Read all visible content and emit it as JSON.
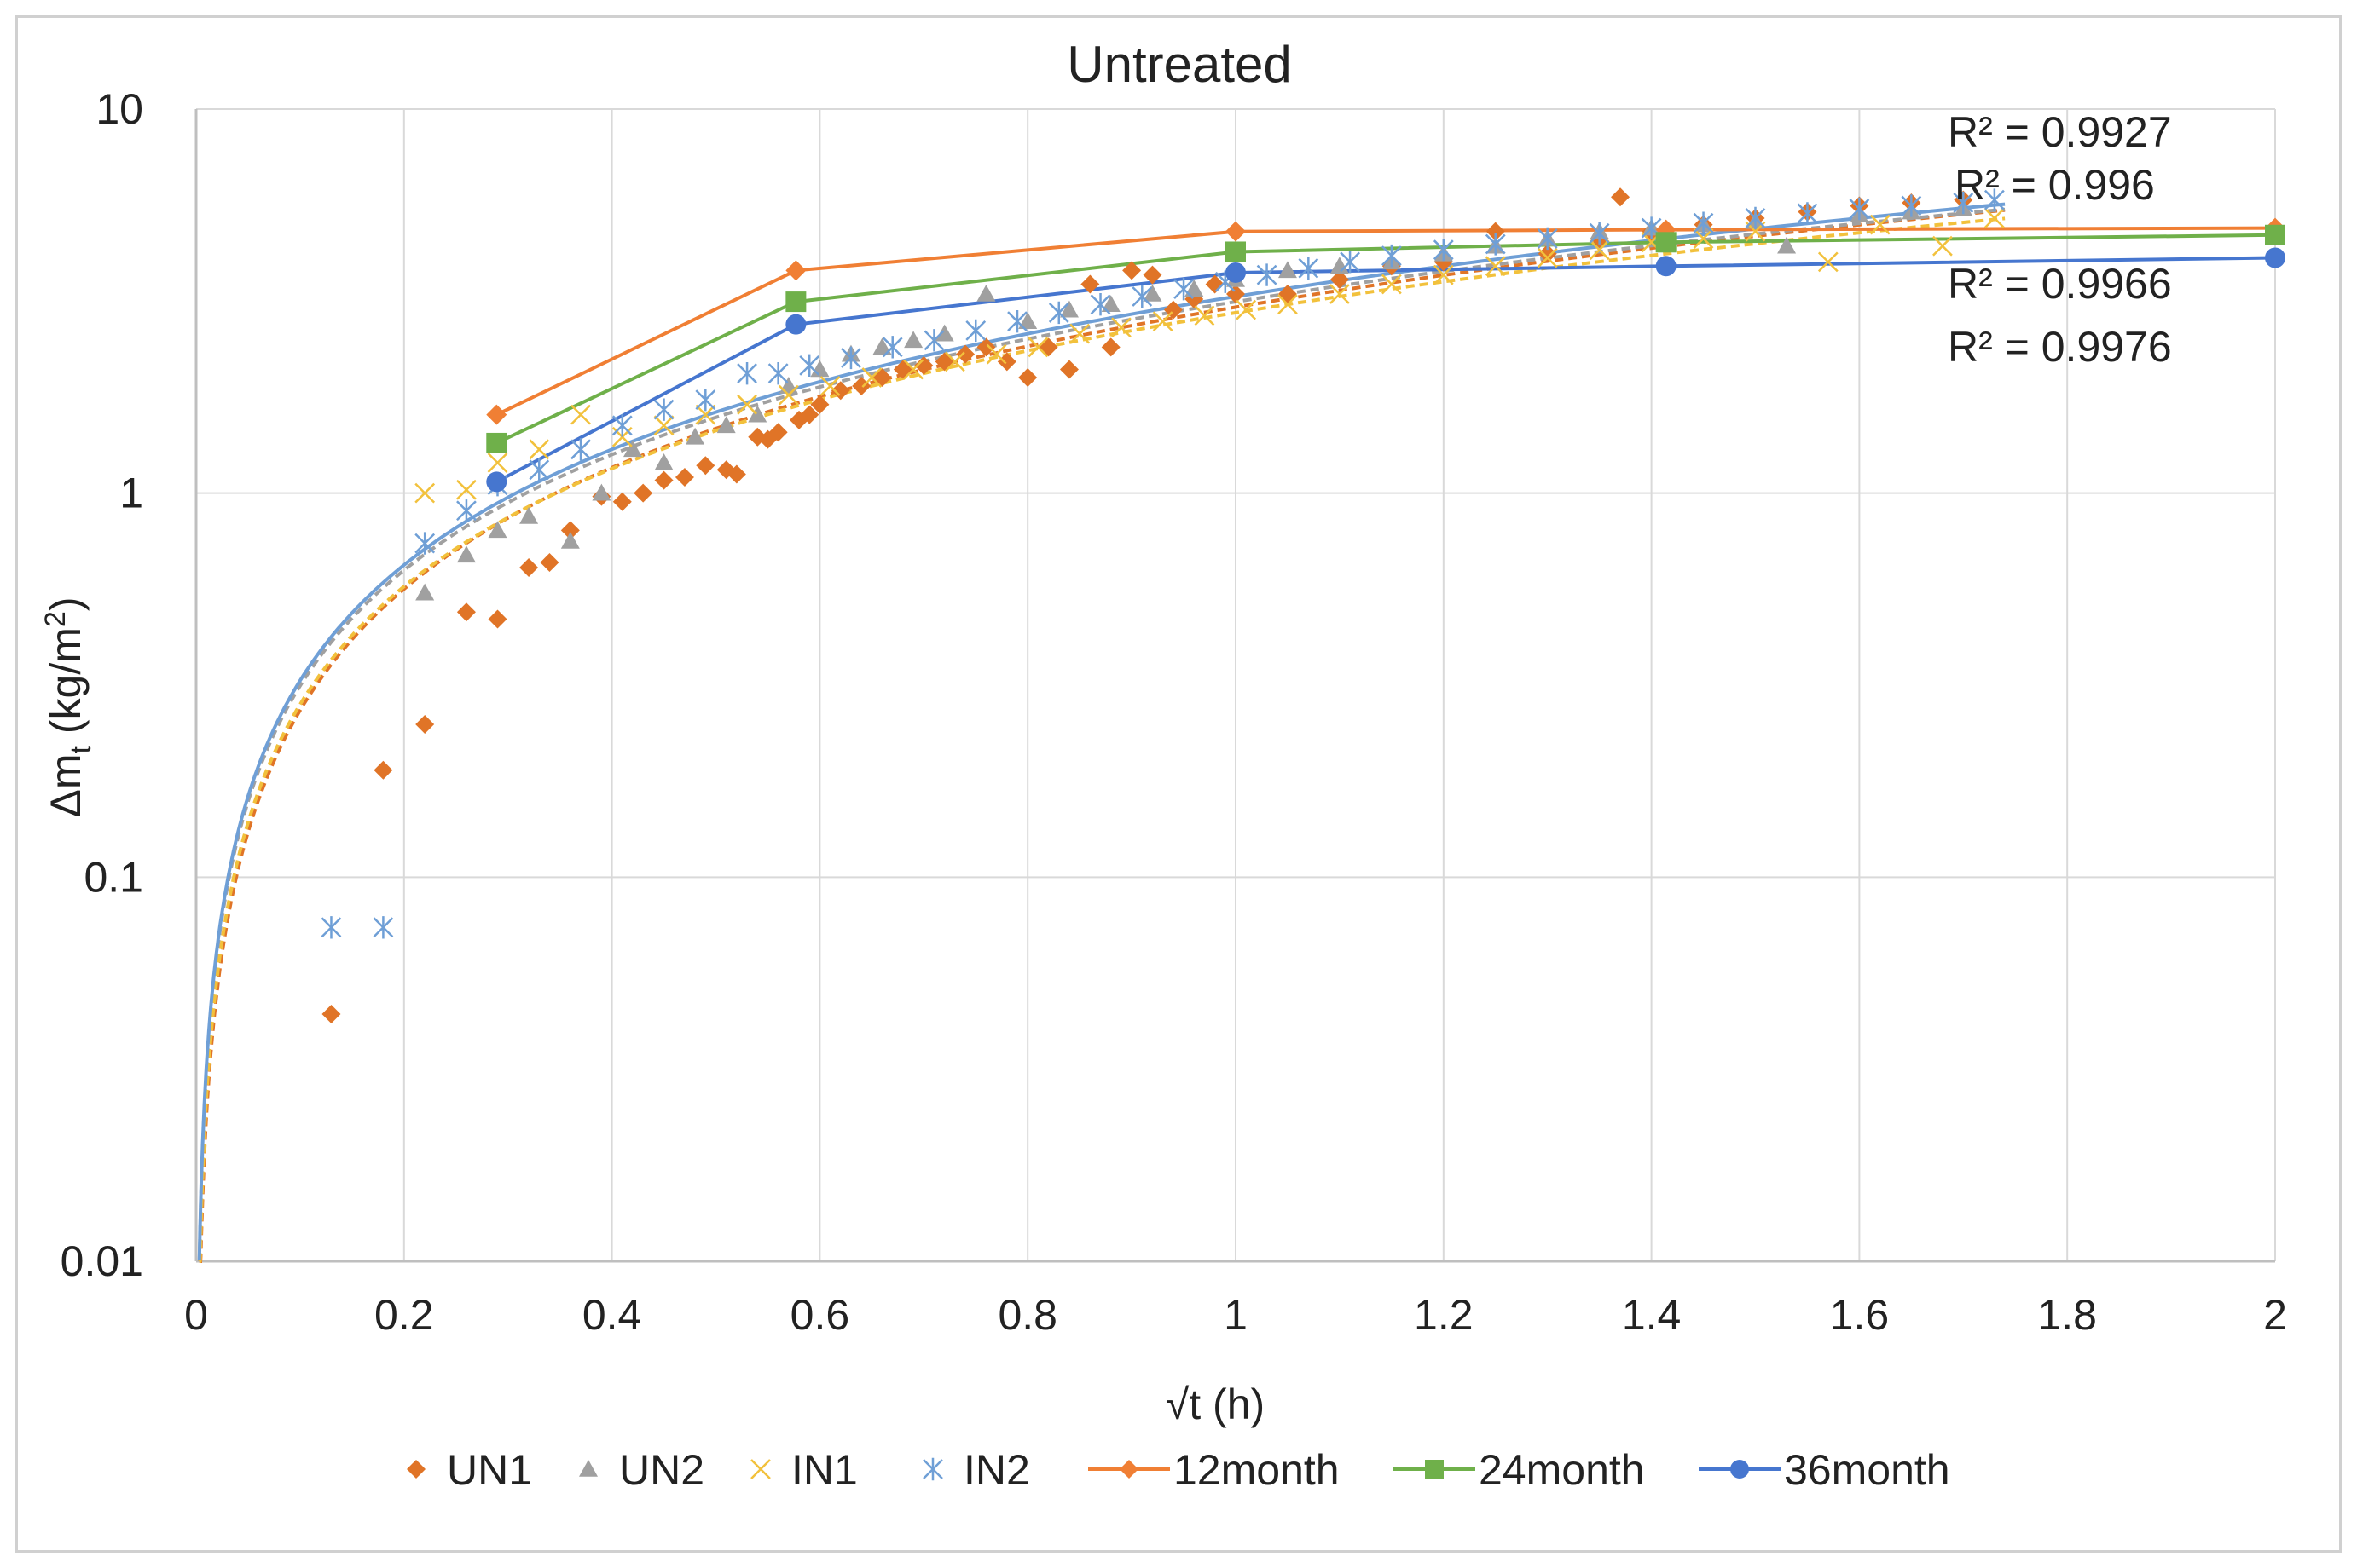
{
  "chart_data": {
    "type": "scatter",
    "title": "Untreated",
    "xlabel": "√t (h)",
    "ylabel": "Δmt (kg/m²)",
    "ylabel_parts": {
      "main": "Δm",
      "sub": "t",
      "unit": " (kg/m",
      "sup": "2",
      "close": ")"
    },
    "xlim": [
      0,
      2
    ],
    "ylim": [
      0.01,
      10
    ],
    "yscale": "log",
    "grid": true,
    "x_ticks": [
      "0",
      "0.2",
      "0.4",
      "0.6",
      "0.8",
      "1",
      "1.2",
      "1.4",
      "1.6",
      "1.8",
      "2"
    ],
    "y_ticks": [
      "0.01",
      "0.1",
      "1",
      "10"
    ],
    "legend_position": "bottom",
    "colors": {
      "UN1": "#e07427",
      "UN2": "#a0a0a0",
      "IN1": "#f2c13c",
      "IN2": "#6f9fd6",
      "12month": "#f07f34",
      "24month": "#6fb04a",
      "36month": "#4676cf"
    },
    "series": [
      {
        "name": "UN1",
        "kind": "scatter",
        "marker": "diamond",
        "x": [
          0.13,
          0.18,
          0.22,
          0.26,
          0.29,
          0.32,
          0.34,
          0.36,
          0.39,
          0.41,
          0.43,
          0.45,
          0.47,
          0.49,
          0.51,
          0.52,
          0.54,
          0.55,
          0.56,
          0.58,
          0.59,
          0.6,
          0.62,
          0.64,
          0.66,
          0.68,
          0.7,
          0.72,
          0.74,
          0.76,
          0.78,
          0.8,
          0.82,
          0.84,
          0.86,
          0.88,
          0.9,
          0.92,
          0.94,
          0.96,
          0.98,
          1.0,
          1.05,
          1.1,
          1.15,
          1.2,
          1.25,
          1.3,
          1.35,
          1.37,
          1.4,
          1.45,
          1.5,
          1.55,
          1.6,
          1.65,
          1.7
        ],
        "y": [
          0.044,
          0.19,
          0.25,
          0.49,
          0.47,
          0.64,
          0.66,
          0.8,
          0.98,
          0.95,
          1.0,
          1.08,
          1.1,
          1.18,
          1.15,
          1.12,
          1.4,
          1.38,
          1.44,
          1.55,
          1.6,
          1.7,
          1.85,
          1.9,
          2.0,
          2.1,
          2.15,
          2.2,
          2.3,
          2.4,
          2.2,
          2.0,
          2.4,
          2.1,
          3.5,
          2.4,
          3.8,
          3.7,
          3.0,
          3.2,
          3.5,
          3.3,
          3.3,
          3.6,
          3.9,
          4.0,
          4.8,
          4.2,
          4.6,
          5.9,
          4.8,
          5.0,
          5.2,
          5.4,
          5.6,
          5.7,
          5.8
        ]
      },
      {
        "name": "UN2",
        "kind": "scatter",
        "marker": "triangle",
        "x": [
          0.22,
          0.26,
          0.29,
          0.32,
          0.36,
          0.39,
          0.42,
          0.45,
          0.48,
          0.51,
          0.54,
          0.57,
          0.6,
          0.63,
          0.66,
          0.69,
          0.72,
          0.76,
          0.8,
          0.84,
          0.88,
          0.92,
          0.96,
          1.0,
          1.05,
          1.1,
          1.15,
          1.2,
          1.25,
          1.3,
          1.35,
          1.4,
          1.45,
          1.5,
          1.53,
          1.6,
          1.65,
          1.7
        ],
        "y": [
          0.55,
          0.69,
          0.8,
          0.87,
          0.75,
          1.0,
          1.3,
          1.2,
          1.4,
          1.5,
          1.6,
          1.9,
          2.1,
          2.3,
          2.4,
          2.5,
          2.6,
          3.3,
          2.8,
          3.0,
          3.1,
          3.3,
          3.4,
          3.6,
          3.8,
          3.9,
          4.0,
          4.2,
          4.4,
          4.6,
          4.8,
          4.9,
          5.0,
          5.1,
          4.4,
          5.3,
          5.4,
          5.5
        ]
      },
      {
        "name": "IN1",
        "kind": "scatter",
        "marker": "x",
        "x": [
          0.22,
          0.26,
          0.29,
          0.33,
          0.37,
          0.41,
          0.45,
          0.49,
          0.53,
          0.57,
          0.61,
          0.65,
          0.69,
          0.73,
          0.77,
          0.81,
          0.85,
          0.89,
          0.93,
          0.97,
          1.01,
          1.05,
          1.1,
          1.15,
          1.2,
          1.25,
          1.3,
          1.35,
          1.4,
          1.45,
          1.5,
          1.57,
          1.62,
          1.68,
          1.73
        ],
        "y": [
          1.0,
          1.02,
          1.2,
          1.3,
          1.6,
          1.4,
          1.5,
          1.6,
          1.7,
          1.8,
          1.9,
          2.0,
          2.1,
          2.2,
          2.3,
          2.4,
          2.6,
          2.7,
          2.8,
          2.9,
          3.0,
          3.1,
          3.3,
          3.5,
          3.7,
          3.9,
          4.1,
          4.3,
          4.5,
          4.6,
          4.8,
          4.0,
          5.0,
          4.4,
          5.2
        ]
      },
      {
        "name": "IN2",
        "kind": "scatter",
        "marker": "star",
        "x": [
          0.13,
          0.18,
          0.22,
          0.26,
          0.29,
          0.33,
          0.37,
          0.41,
          0.45,
          0.49,
          0.53,
          0.56,
          0.59,
          0.63,
          0.67,
          0.71,
          0.75,
          0.79,
          0.83,
          0.87,
          0.91,
          0.95,
          0.99,
          1.03,
          1.07,
          1.11,
          1.15,
          1.2,
          1.25,
          1.3,
          1.35,
          1.4,
          1.45,
          1.5,
          1.55,
          1.6,
          1.65,
          1.7,
          1.73
        ],
        "y": [
          0.074,
          0.074,
          0.74,
          0.9,
          1.05,
          1.15,
          1.3,
          1.5,
          1.65,
          1.75,
          2.05,
          2.05,
          2.15,
          2.25,
          2.4,
          2.5,
          2.65,
          2.8,
          2.95,
          3.1,
          3.25,
          3.4,
          3.55,
          3.7,
          3.85,
          4.0,
          4.15,
          4.3,
          4.45,
          4.6,
          4.75,
          4.9,
          5.05,
          5.2,
          5.35,
          5.5,
          5.6,
          5.7,
          5.8
        ]
      },
      {
        "name": "12month",
        "kind": "line",
        "marker": "diamond",
        "x": [
          0.289,
          0.577,
          1.0,
          1.414,
          2.0
        ],
        "y": [
          1.6,
          3.8,
          4.8,
          4.85,
          4.9
        ]
      },
      {
        "name": "24month",
        "kind": "line",
        "marker": "square",
        "x": [
          0.289,
          0.577,
          1.0,
          1.414,
          2.0
        ],
        "y": [
          1.35,
          3.15,
          4.25,
          4.5,
          4.7
        ]
      },
      {
        "name": "36month",
        "kind": "line",
        "marker": "circle",
        "x": [
          0.289,
          0.577,
          1.0,
          1.414,
          2.0
        ],
        "y": [
          1.07,
          2.75,
          3.75,
          3.9,
          4.1
        ]
      }
    ],
    "trendlines": [
      {
        "name": "UN1",
        "type": "power",
        "a": 3.05,
        "b": 1.05,
        "dash": true
      },
      {
        "name": "UN2",
        "type": "power",
        "a": 3.15,
        "b": 1.0,
        "dash": true
      },
      {
        "name": "IN1",
        "type": "power",
        "a": 2.95,
        "b": 1.02,
        "dash": true
      },
      {
        "name": "IN2",
        "type": "power",
        "a": 3.25,
        "b": 1.0,
        "dash": false
      }
    ],
    "annotations": [
      "R² = 0.9927",
      "R² = 0.996",
      "R² = 0.9966",
      "R² = 0.9976"
    ],
    "legend": [
      "UN1",
      "UN2",
      "IN1",
      "IN2",
      "12month",
      "24month",
      "36month"
    ]
  }
}
